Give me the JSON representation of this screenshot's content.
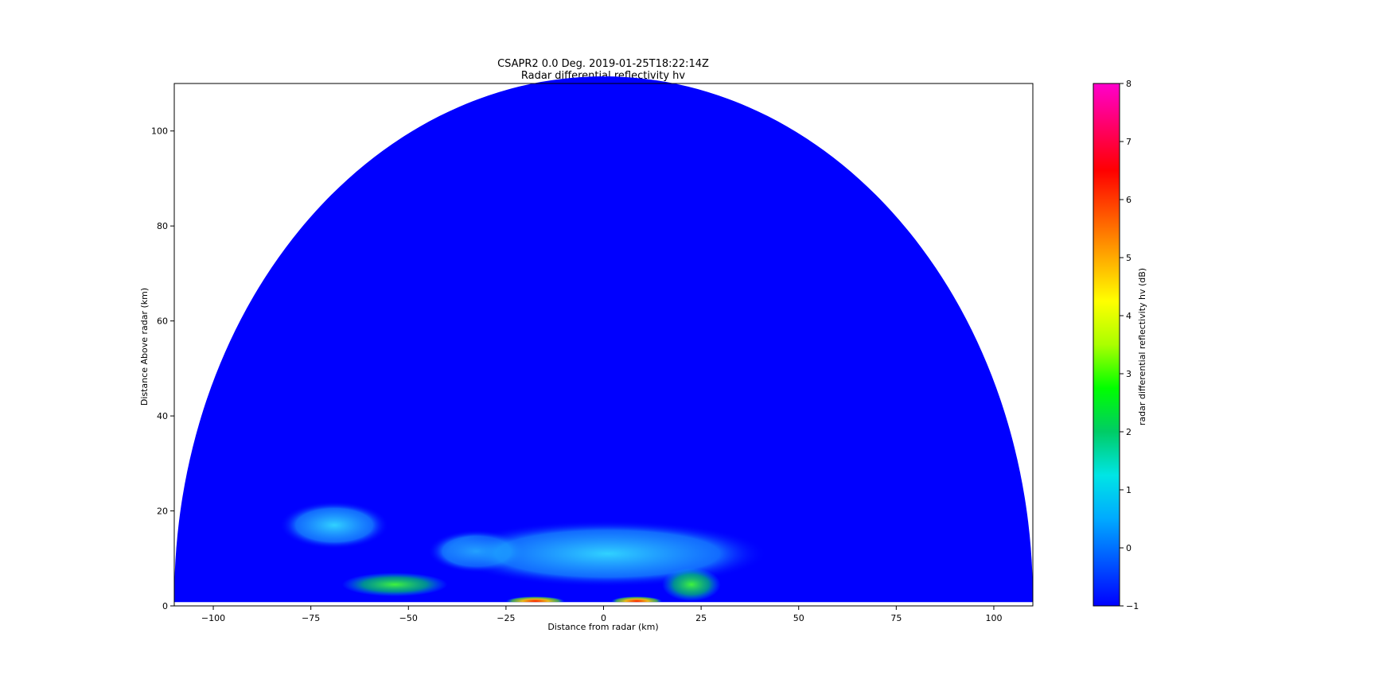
{
  "chart_data": {
    "type": "heatmap",
    "title": "CSAPR2 0.0 Deg. 2019-01-25T18:22:14Z",
    "subtitle": "Radar differential reflectivity hv",
    "xlabel": "Distance from radar (km)",
    "ylabel": "Distance Above radar  (km)",
    "xlim": [
      -110,
      110
    ],
    "ylim": [
      0,
      110
    ],
    "x_ticks": [
      -100,
      -75,
      -50,
      -25,
      0,
      25,
      50,
      75,
      100
    ],
    "x_tick_labels": [
      "−100",
      "−75",
      "−50",
      "−25",
      "0",
      "25",
      "50",
      "75",
      "100"
    ],
    "y_ticks": [
      0,
      20,
      40,
      60,
      80,
      100
    ],
    "y_tick_labels": [
      "0",
      "20",
      "40",
      "60",
      "80",
      "100"
    ],
    "grid": false,
    "max_range_km": 110,
    "background_value": -1,
    "colorbar": {
      "label": "radar differential reflectivity hv (dB)",
      "vmin": -1,
      "vmax": 8,
      "ticks": [
        -1,
        0,
        1,
        2,
        3,
        4,
        5,
        6,
        7,
        8
      ],
      "tick_labels": [
        "−1",
        "0",
        "1",
        "2",
        "3",
        "4",
        "5",
        "6",
        "7",
        "8"
      ],
      "colors": [
        "#0000ff",
        "#0055ff",
        "#00aaff",
        "#00e5e5",
        "#00cc66",
        "#00ff00",
        "#aaff00",
        "#ffff00",
        "#ffaa00",
        "#ff5500",
        "#ff0000",
        "#ff0066",
        "#ff00cc"
      ]
    },
    "features": [
      {
        "name": "left elevated echo",
        "x": [
          -83,
          -55
        ],
        "y": [
          12,
          22
        ],
        "value": 0.5
      },
      {
        "name": "left layer",
        "x": [
          -45,
          -20
        ],
        "y": [
          7,
          16
        ],
        "value": 0.5
      },
      {
        "name": "central fan",
        "x": [
          -40,
          42
        ],
        "y": [
          4,
          18
        ],
        "value": 0.3
      },
      {
        "name": "near surface hotspot left",
        "x": [
          -25,
          -10
        ],
        "y": [
          0,
          2
        ],
        "value": 6
      },
      {
        "name": "near surface hotspot right",
        "x": [
          2,
          15
        ],
        "y": [
          0,
          2
        ],
        "value": 6.5
      },
      {
        "name": "green cells",
        "x": [
          -67,
          -40
        ],
        "y": [
          2,
          7
        ],
        "value": 2.5
      },
      {
        "name": "right clutter",
        "x": [
          15,
          30
        ],
        "y": [
          1,
          8
        ],
        "value": 2
      }
    ]
  }
}
